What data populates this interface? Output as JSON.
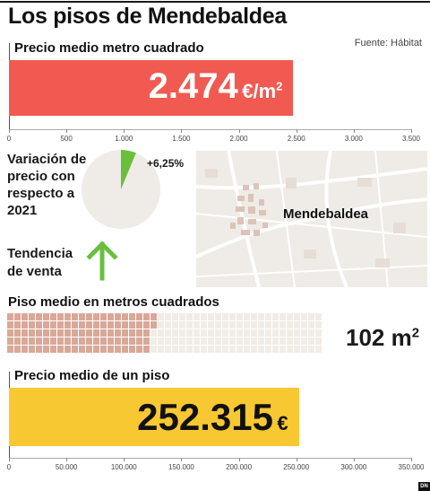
{
  "header": {
    "title": "Los pisos de  Mendebaldea",
    "source": "Fuente: Hábitat"
  },
  "chart_data": [
    {
      "type": "bar",
      "title": "Precio medio metro cuadrado",
      "values": [
        2474
      ],
      "value_label": "2.474",
      "unit": "€/m",
      "unit_exp": "2",
      "xlim": [
        0,
        3500
      ],
      "ticks": [
        0,
        500,
        1000,
        1500,
        2000,
        2500,
        3000,
        3500
      ],
      "tick_labels": [
        "0",
        "500",
        "1.000",
        "1.500",
        "2.000",
        "2.500",
        "3.000",
        "3.500"
      ],
      "color": "#f05a50"
    },
    {
      "type": "pie",
      "title": "Variación de precio con respecto a 2021",
      "values": [
        6.25
      ],
      "value_label": "+6,25%",
      "color": "#6abf3d",
      "background": "#efebe6"
    },
    {
      "type": "bar",
      "title": "Piso medio en metros cuadrados",
      "values": [
        102
      ],
      "value_label": "102 m",
      "unit_exp": "2",
      "cells_total": 220,
      "filled_color": "#d9a898",
      "empty_color": "#f2ece6"
    },
    {
      "type": "bar",
      "title": "Precio medio de un piso",
      "values": [
        252315
      ],
      "value_label": "252.315",
      "unit": "€",
      "xlim": [
        0,
        350000
      ],
      "ticks": [
        0,
        50000,
        100000,
        150000,
        200000,
        250000,
        300000,
        350000
      ],
      "tick_labels": [
        "0",
        "50.000",
        "100.000",
        "150.000",
        "200.000",
        "250.000",
        "300.000",
        "350.000"
      ],
      "color": "#f7c832"
    }
  ],
  "trend": {
    "label_line1": "Tendencia",
    "label_line2": "de venta",
    "direction": "up",
    "color": "#6abf3d",
    "icon": "arrow-up-icon"
  },
  "map": {
    "label": "Mendebaldea"
  },
  "footer": {
    "badge": "DN"
  }
}
